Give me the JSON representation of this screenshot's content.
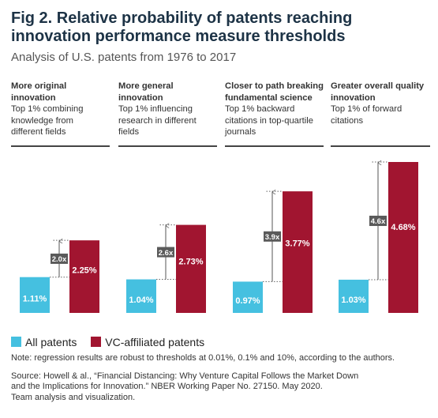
{
  "title": "Fig 2. Relative probability of patents reaching innovation performance measure thresholds",
  "subtitle": "Analysis of U.S. patents from 1976 to 2017",
  "panels": [
    {
      "heading": "More original innovation",
      "desc": "Top 1% combining knowledge from different fields"
    },
    {
      "heading": "More general innovation",
      "desc": "Top 1% influencing research in different fields"
    },
    {
      "heading": "Closer to path breaking fundamental science",
      "desc": "Top 1% backward citations in top-quartile journals"
    },
    {
      "heading": "Greater overall quality innovation",
      "desc": "Top 1% of forward citations"
    }
  ],
  "legend": {
    "all": "All patents",
    "vc": "VC-affiliated patents"
  },
  "colors": {
    "all": "#45c0e0",
    "vc": "#a11530",
    "ratio_box": "#5a5a5a",
    "title": "#1d3346"
  },
  "note": "Note: regression results are robust to thresholds at 0.01%, 0.1% and 10%, according to the authors.",
  "source": [
    "Source: Howell & al., “Financial Distancing: Why Venture Capital Follows the Market Down",
    "and the Implications for Innovation.” NBER Working Paper No. 27150. May 2020.",
    "Team analysis and visualization."
  ],
  "chart_data": {
    "type": "bar",
    "categories": [
      "More original innovation",
      "More general innovation",
      "Closer to path breaking fundamental science",
      "Greater overall quality innovation"
    ],
    "series": [
      {
        "name": "All patents",
        "values": [
          1.11,
          1.04,
          0.97,
          1.03
        ],
        "labels": [
          "1.11%",
          "1.04%",
          "0.97%",
          "1.03%"
        ]
      },
      {
        "name": "VC-affiliated patents",
        "values": [
          2.25,
          2.73,
          3.77,
          4.68
        ],
        "labels": [
          "2.25%",
          "2.73%",
          "3.77%",
          "4.68%"
        ]
      }
    ],
    "ratios": [
      "2.0x",
      "2.6x",
      "3.9x",
      "4.6x"
    ],
    "ylim": [
      0,
      4.68
    ]
  }
}
